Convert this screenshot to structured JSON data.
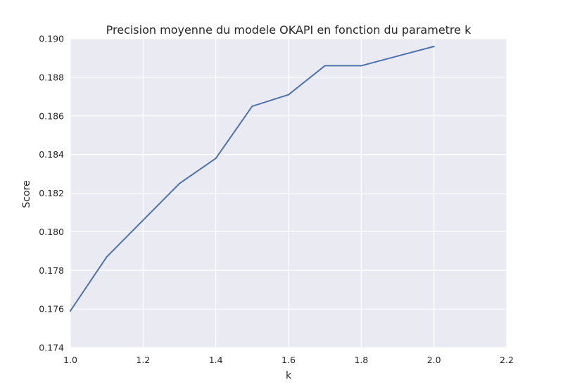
{
  "chart_data": {
    "type": "line",
    "title": "Precision moyenne du modele OKAPI en fonction du parametre k",
    "xlabel": "k",
    "ylabel": "Score",
    "xlim": [
      1.0,
      2.2
    ],
    "ylim": [
      0.174,
      0.19
    ],
    "x_ticks": [
      "1.0",
      "1.2",
      "1.4",
      "1.6",
      "1.8",
      "2.0",
      "2.2"
    ],
    "y_ticks": [
      "0.174",
      "0.176",
      "0.178",
      "0.180",
      "0.182",
      "0.184",
      "0.186",
      "0.188",
      "0.190"
    ],
    "grid": true,
    "series": [
      {
        "color": "#4c72b0",
        "x": [
          1.0,
          1.1,
          1.2,
          1.3,
          1.4,
          1.5,
          1.6,
          1.7,
          1.8,
          1.9,
          2.0
        ],
        "values": [
          0.1759,
          0.1787,
          0.1806,
          0.1825,
          0.1838,
          0.1865,
          0.1871,
          0.1886,
          0.1886,
          0.1891,
          0.1896
        ]
      }
    ]
  },
  "colors": {
    "plot_background": "#eaeaf2",
    "grid": "#ffffff",
    "text": "#262626"
  }
}
